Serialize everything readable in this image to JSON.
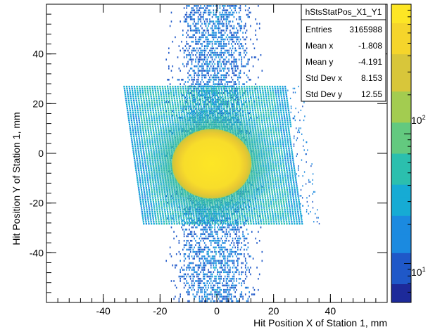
{
  "chart_data": {
    "type": "heatmap",
    "title": "",
    "xlabel": "Hit Position X of Station 1, mm",
    "ylabel": "Hit Position Y of Station 1, mm",
    "xlim": [
      -60,
      60
    ],
    "ylim": [
      -60,
      60
    ],
    "x_ticks": [
      -40,
      -20,
      0,
      20,
      40
    ],
    "y_ticks": [
      -40,
      -20,
      0,
      20,
      40
    ],
    "x_tick_labels": [
      "-40",
      "-20",
      "0",
      "20",
      "40"
    ],
    "y_tick_labels": [
      "-40",
      "-20",
      "0",
      "20",
      "40"
    ],
    "colorbar": {
      "scale": "log",
      "min": 5,
      "max": 1000,
      "tick_labels": [
        {
          "value": 100,
          "base": "10",
          "exp": "2"
        },
        {
          "value": 10,
          "base": "10",
          "exp": "1"
        }
      ],
      "palette": [
        "#1d2a9a",
        "#1f58c8",
        "#1b8ae0",
        "#16abd4",
        "#2bbfae",
        "#63c97f",
        "#a3cc50",
        "#d8c63a",
        "#f5d52b",
        "#fde625"
      ]
    },
    "regions": {
      "detector_band": {
        "y_range": [
          -28,
          28
        ],
        "x_left_at_top": -33,
        "x_left_at_bottom": -26,
        "x_right_at_top": 24,
        "x_right_at_bottom": 30,
        "level": 0.35
      },
      "beam_spot": {
        "center": [
          -1.8,
          -4.2
        ],
        "radius": 14,
        "level": 0.95
      },
      "vertical_stripe": {
        "x_range": [
          -14,
          12
        ],
        "y_range": [
          -60,
          60
        ],
        "level": 0.25
      }
    },
    "stats_box": {
      "title": "hStsStatPos_X1_Y1",
      "rows": [
        {
          "label": "Entries",
          "value": "3165988"
        },
        {
          "label": "Mean x",
          "value": "-1.808"
        },
        {
          "label": "Mean y",
          "value": "-4.191"
        },
        {
          "label": "Std Dev x",
          "value": "8.153"
        },
        {
          "label": "Std Dev y",
          "value": "12.55"
        }
      ]
    }
  }
}
